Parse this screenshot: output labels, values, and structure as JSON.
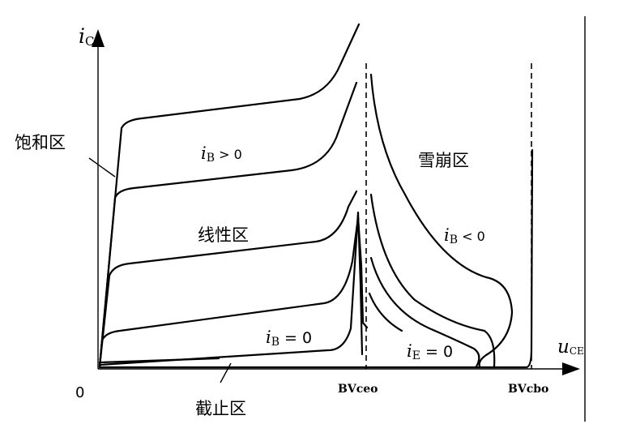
{
  "axes": {
    "y_label_main": "i",
    "y_label_sub": "C",
    "x_label_main": "u",
    "x_label_sub": "CE",
    "origin": "0"
  },
  "regions": {
    "saturation": "饱和区",
    "linear": "线性区",
    "cutoff": "截止区",
    "avalanche": "雪崩区"
  },
  "curve_labels": {
    "ib_pos_main": "i",
    "ib_pos_sub": "B",
    "ib_pos_rel": " > 0",
    "ib_zero_main": "i",
    "ib_zero_sub": "B",
    "ib_zero_rel": " = 0",
    "ie_zero_main": "i",
    "ie_zero_sub": "E",
    "ie_zero_rel": " = 0",
    "ib_neg_main": "i",
    "ib_neg_sub": "B",
    "ib_neg_rel": " < 0"
  },
  "breakdown": {
    "bv1": "BVceo",
    "bv2": "BVcbo"
  }
}
